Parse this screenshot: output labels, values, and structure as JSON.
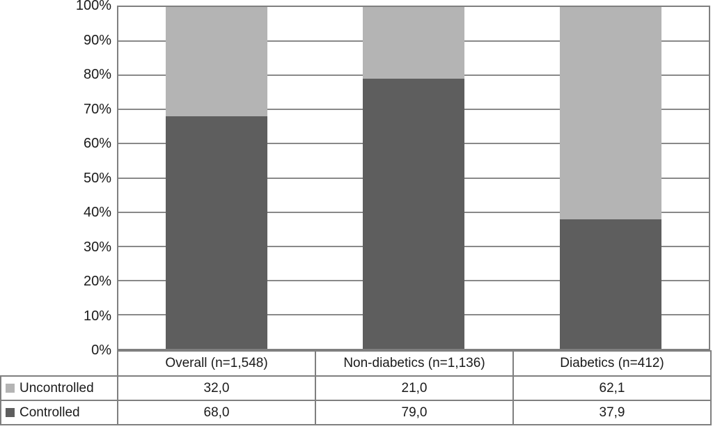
{
  "chart_data": {
    "type": "bar",
    "subtype": "stacked-100-percent",
    "title": "",
    "xlabel": "",
    "ylabel": "",
    "categories": [
      "Overall (n=1,548)",
      "Non-diabetics (n=1,136)",
      "Diabetics (n=412)"
    ],
    "series": [
      {
        "name": "Uncontrolled",
        "values": [
          32.0,
          21.0,
          62.1
        ],
        "color": "#b4b4b4"
      },
      {
        "name": "Controlled",
        "values": [
          68.0,
          79.0,
          37.9
        ],
        "color": "#5e5e5e"
      }
    ],
    "yticks": [
      "0%",
      "10%",
      "20%",
      "30%",
      "40%",
      "50%",
      "60%",
      "70%",
      "80%",
      "90%",
      "100%"
    ],
    "ylim": [
      0,
      100
    ],
    "grid": true,
    "gridline_color": "#898989",
    "legend_position": "data-table-left"
  },
  "table": {
    "headers": [
      "Overall (n=1,548)",
      "Non-diabetics (n=1,136)",
      "Diabetics (n=412)"
    ],
    "rows": [
      {
        "label": "Uncontrolled",
        "values": [
          "32,0",
          "21,0",
          "62,1"
        ]
      },
      {
        "label": "Controlled",
        "values": [
          "68,0",
          "79,0",
          "37,9"
        ]
      }
    ]
  },
  "colors": {
    "uncontrolled": "#b4b4b4",
    "controlled": "#5e5e5e",
    "border": "#7f7f7f",
    "text": "#1a1a1a",
    "background": "#ffffff"
  }
}
